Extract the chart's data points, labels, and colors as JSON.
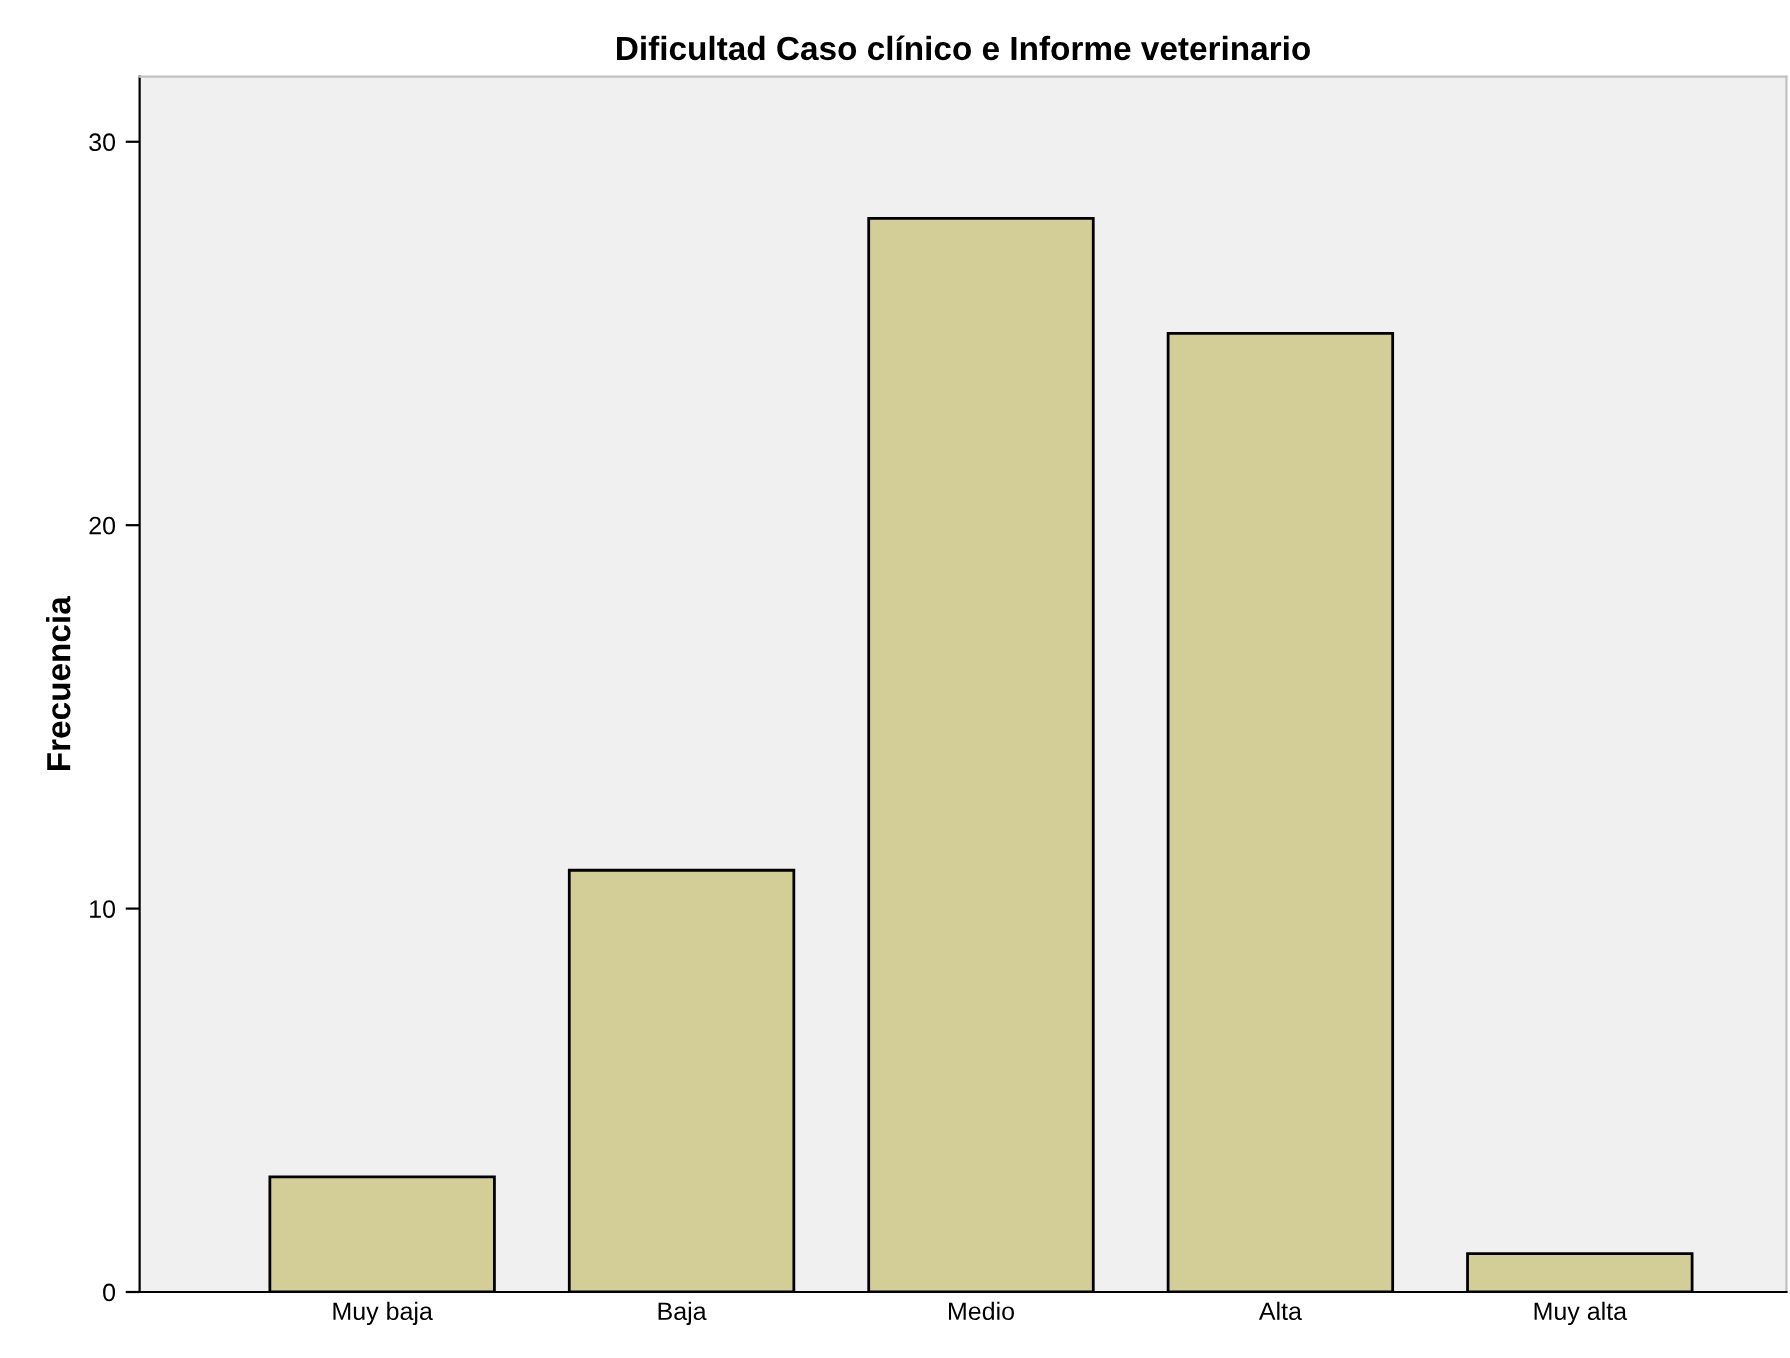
{
  "chart_data": {
    "type": "bar",
    "title": "Dificultad Caso clínico e Informe veterinario",
    "ylabel": "Frecuencia",
    "categories": [
      "Muy baja",
      "Baja",
      "Medio",
      "Alta",
      "Muy alta"
    ],
    "values": [
      3,
      11,
      28,
      25,
      1
    ],
    "color": "#d3ce97",
    "ylim": [
      0,
      31.7
    ],
    "yticks": [
      0,
      10,
      20,
      30
    ],
    "grid": false
  }
}
